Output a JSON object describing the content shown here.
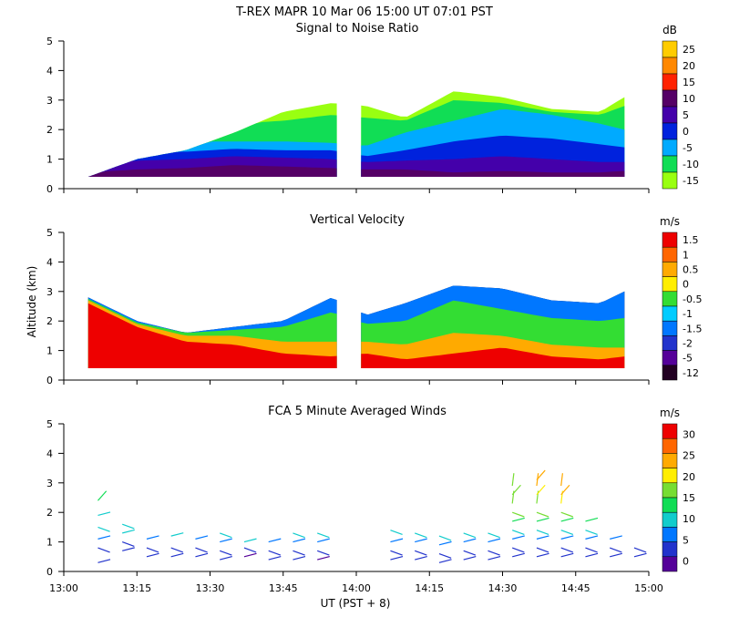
{
  "title": "T-REX   MAPR 10 Mar 06   15:00 UT   07:01   PST",
  "x_axis": {
    "label": "UT  (PST + 8)",
    "ticks": [
      "13:00",
      "13:15",
      "13:30",
      "13:45",
      "14:00",
      "14:15",
      "14:30",
      "14:45",
      "15:00"
    ]
  },
  "y_axis": {
    "label": "Altitude  (km)",
    "ticks": [
      "0",
      "1",
      "2",
      "3",
      "4",
      "5"
    ],
    "range": [
      0,
      5
    ]
  },
  "chart_data": [
    {
      "type": "heatmap",
      "title": "Signal to Noise Ratio",
      "units": "dB",
      "colorbar_ticks": [
        "25",
        "20",
        "15",
        "10",
        "5",
        "0",
        "-5",
        "-10",
        "-15"
      ],
      "colors": [
        "#ffcc00",
        "#ff8800",
        "#ff2200",
        "#550066",
        "#4400aa",
        "#0022dd",
        "#00aaff",
        "#11dd55",
        "#99ff11"
      ],
      "xlim_minutes": [
        0,
        120
      ],
      "ylim": [
        0,
        5
      ],
      "data_gap_minutes": [
        56,
        61
      ],
      "profile_minutes": [
        5,
        15,
        25,
        35,
        45,
        55,
        62,
        70,
        80,
        90,
        100,
        110,
        115
      ],
      "sample_bounds_km": [
        0.4,
        1.0,
        1.3,
        1.9,
        2.6,
        2.9,
        2.8,
        2.4,
        3.3,
        3.1,
        2.7,
        2.6,
        3.1
      ],
      "bands": [
        {
          "label": "10",
          "top_km": [
            0.55,
            0.65,
            0.7,
            0.8,
            0.75,
            0.7,
            0.65,
            0.65,
            0.55,
            0.6,
            0.55,
            0.55,
            0.6
          ]
        },
        {
          "label": "5",
          "top_km": [
            0.85,
            0.95,
            1.0,
            1.1,
            1.05,
            1.0,
            0.9,
            0.95,
            1.0,
            1.1,
            1.0,
            0.9,
            0.9
          ]
        },
        {
          "label": "0",
          "top_km": [
            1.4,
            1.3,
            1.25,
            1.35,
            1.3,
            1.3,
            1.1,
            1.3,
            1.6,
            1.8,
            1.7,
            1.5,
            1.4
          ]
        },
        {
          "label": "-5",
          "top_km": [
            2.0,
            1.7,
            1.6,
            1.6,
            1.6,
            1.55,
            1.45,
            1.9,
            2.3,
            2.7,
            2.5,
            2.2,
            2.0
          ]
        },
        {
          "label": "-10",
          "top_km": [
            2.6,
            2.3,
            2.3,
            2.2,
            2.3,
            2.5,
            2.4,
            2.3,
            3.0,
            2.9,
            2.6,
            2.5,
            2.8
          ]
        }
      ]
    },
    {
      "type": "heatmap",
      "title": "Vertical Velocity",
      "units": "m/s",
      "colorbar_ticks": [
        "1.5",
        "1",
        "0.5",
        "0",
        "-0.5",
        "-1",
        "-1.5",
        "-2",
        "-5",
        "-12"
      ],
      "colors": [
        "#ee0000",
        "#ff6600",
        "#ffaa00",
        "#ffee00",
        "#33dd33",
        "#00ccff",
        "#0077ff",
        "#2233cc",
        "#550099",
        "#220022"
      ],
      "xlim_minutes": [
        0,
        120
      ],
      "ylim": [
        0,
        5
      ],
      "data_gap_minutes": [
        56,
        61
      ],
      "profile_minutes": [
        5,
        15,
        25,
        35,
        45,
        55,
        62,
        70,
        80,
        90,
        100,
        110,
        115
      ],
      "sample_bounds_km": [
        2.8,
        2.0,
        1.6,
        1.8,
        2.0,
        2.8,
        2.2,
        2.6,
        3.2,
        3.1,
        2.7,
        2.6,
        3.0
      ],
      "bands": [
        {
          "label": "1.5",
          "top_km": [
            2.6,
            1.8,
            1.3,
            1.2,
            0.9,
            0.8,
            0.9,
            0.7,
            0.9,
            1.1,
            0.8,
            0.7,
            0.8
          ]
        },
        {
          "label": "0.5",
          "top_km": [
            2.7,
            1.9,
            1.5,
            1.5,
            1.3,
            1.3,
            1.3,
            1.2,
            1.6,
            1.5,
            1.2,
            1.1,
            1.1
          ]
        },
        {
          "label": "-0.5",
          "top_km": [
            2.75,
            1.95,
            1.6,
            1.7,
            1.8,
            2.3,
            1.9,
            2.0,
            2.7,
            2.4,
            2.1,
            2.0,
            2.1
          ]
        },
        {
          "label": "-1.5",
          "top_km": [
            2.8,
            2.0,
            1.6,
            1.8,
            2.0,
            2.8,
            2.2,
            2.6,
            3.2,
            3.1,
            2.7,
            2.6,
            3.0
          ]
        }
      ]
    },
    {
      "type": "scatter",
      "title": "FCA 5 Minute Averaged Winds",
      "units": "m/s",
      "colorbar_ticks": [
        "30",
        "25",
        "20",
        "15",
        "10",
        "5",
        "0"
      ],
      "colors": [
        "#ee0000",
        "#ff6600",
        "#ffaa00",
        "#ffee00",
        "#77dd33",
        "#11dd55",
        "#11cccc",
        "#0077ff",
        "#2233cc",
        "#550099"
      ],
      "xlim_minutes": [
        0,
        120
      ],
      "ylim": [
        0,
        5
      ],
      "barbs": [
        {
          "minutes": 7,
          "altitudes_km": [
            0.3,
            0.8,
            1.1,
            1.5,
            1.9,
            2.4
          ],
          "speeds": [
            5,
            6,
            9,
            10,
            12,
            14
          ]
        },
        {
          "minutes": 12,
          "altitudes_km": [
            0.7,
            1.0,
            1.3,
            1.6
          ],
          "speeds": [
            4,
            6,
            10,
            12
          ]
        },
        {
          "minutes": 17,
          "altitudes_km": [
            0.5,
            0.8,
            1.1
          ],
          "speeds": [
            4,
            6,
            9
          ]
        },
        {
          "minutes": 22,
          "altitudes_km": [
            0.5,
            0.8,
            1.2
          ],
          "speeds": [
            4,
            6,
            11
          ]
        },
        {
          "minutes": 27,
          "altitudes_km": [
            0.5,
            0.8,
            1.1
          ],
          "speeds": [
            4,
            6,
            9
          ]
        },
        {
          "minutes": 32,
          "altitudes_km": [
            0.4,
            0.7,
            1.0,
            1.3
          ],
          "speeds": [
            5,
            6,
            9,
            11
          ]
        },
        {
          "minutes": 37,
          "altitudes_km": [
            0.5,
            0.8,
            1.0
          ],
          "speeds": [
            3,
            6,
            10
          ]
        },
        {
          "minutes": 42,
          "altitudes_km": [
            0.4,
            0.7,
            1.0
          ],
          "speeds": [
            4,
            6,
            9
          ]
        },
        {
          "minutes": 47,
          "altitudes_km": [
            0.4,
            0.7,
            1.0,
            1.3
          ],
          "speeds": [
            4,
            6,
            9,
            11
          ]
        },
        {
          "minutes": 52,
          "altitudes_km": [
            0.4,
            0.7,
            1.0,
            1.3
          ],
          "speeds": [
            3,
            5,
            8,
            11
          ]
        },
        {
          "minutes": 67,
          "altitudes_km": [
            0.4,
            0.7,
            1.0,
            1.4
          ],
          "speeds": [
            4,
            6,
            9,
            11
          ]
        },
        {
          "minutes": 72,
          "altitudes_km": [
            0.4,
            0.7,
            1.0,
            1.3
          ],
          "speeds": [
            4,
            6,
            9,
            11
          ]
        },
        {
          "minutes": 77,
          "altitudes_km": [
            0.3,
            0.6,
            0.9,
            1.2
          ],
          "speeds": [
            4,
            6,
            9,
            11
          ]
        },
        {
          "minutes": 82,
          "altitudes_km": [
            0.4,
            0.7,
            1.0,
            1.3
          ],
          "speeds": [
            4,
            6,
            9,
            11
          ]
        },
        {
          "minutes": 87,
          "altitudes_km": [
            0.4,
            0.7,
            1.0,
            1.3
          ],
          "speeds": [
            4,
            6,
            9,
            11
          ]
        },
        {
          "minutes": 92,
          "altitudes_km": [
            0.5,
            0.8,
            1.1,
            1.4,
            1.7,
            2.0,
            2.3,
            2.6,
            2.9
          ],
          "speeds": [
            4,
            6,
            9,
            11,
            14,
            16,
            17,
            18,
            18
          ]
        },
        {
          "minutes": 97,
          "altitudes_km": [
            0.5,
            0.8,
            1.1,
            1.4,
            1.7,
            2.0,
            2.3,
            2.6,
            2.9,
            3.1
          ],
          "speeds": [
            4,
            6,
            9,
            11,
            14,
            16,
            18,
            20,
            22,
            23
          ]
        },
        {
          "minutes": 102,
          "altitudes_km": [
            0.5,
            0.8,
            1.1,
            1.4,
            1.7,
            2.0,
            2.3,
            2.6,
            2.9
          ],
          "speeds": [
            4,
            6,
            9,
            12,
            15,
            17,
            20,
            22,
            24
          ]
        },
        {
          "minutes": 107,
          "altitudes_km": [
            0.5,
            0.8,
            1.1,
            1.4,
            1.7
          ],
          "speeds": [
            4,
            6,
            9,
            12,
            15
          ]
        },
        {
          "minutes": 112,
          "altitudes_km": [
            0.5,
            0.8,
            1.1
          ],
          "speeds": [
            4,
            6,
            9
          ]
        },
        {
          "minutes": 117,
          "altitudes_km": [
            0.5,
            0.8
          ],
          "speeds": [
            4,
            6
          ]
        }
      ]
    }
  ]
}
